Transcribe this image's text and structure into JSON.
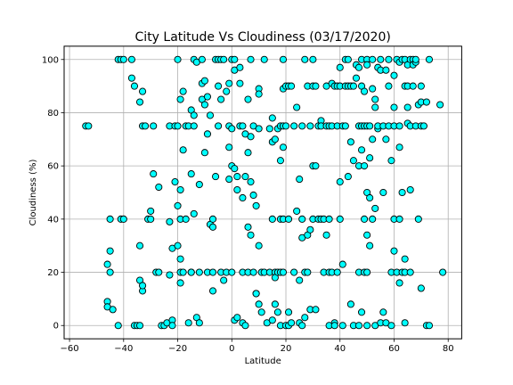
{
  "chart_data": {
    "type": "scatter",
    "title": "City Latitude Vs Cloudiness  (03/17/2020)",
    "xlabel": "Latitude",
    "ylabel": "Cloudiness (%)",
    "xlim": [
      -62,
      85
    ],
    "ylim": [
      -5,
      105
    ],
    "xticks": [
      -60,
      -40,
      -20,
      0,
      20,
      40,
      60,
      80
    ],
    "yticks": [
      0,
      20,
      40,
      60,
      80,
      100
    ],
    "grid": true,
    "marker_fill": "#00ffff",
    "marker_edge": "#000000",
    "points": [
      [
        -54,
        75
      ],
      [
        -53,
        75
      ],
      [
        -46,
        9
      ],
      [
        -46,
        7
      ],
      [
        -46,
        23
      ],
      [
        -45,
        20
      ],
      [
        -45,
        28
      ],
      [
        -45,
        40
      ],
      [
        -44,
        6
      ],
      [
        -42,
        0
      ],
      [
        -42,
        100
      ],
      [
        -41,
        100
      ],
      [
        -41,
        40
      ],
      [
        -40,
        40
      ],
      [
        -40,
        100
      ],
      [
        -37,
        93
      ],
      [
        -37,
        100
      ],
      [
        -36,
        90
      ],
      [
        -36,
        0
      ],
      [
        -35,
        0
      ],
      [
        -34,
        0
      ],
      [
        -34,
        17
      ],
      [
        -34,
        30
      ],
      [
        -34,
        84
      ],
      [
        -33,
        13
      ],
      [
        -33,
        88
      ],
      [
        -33,
        15
      ],
      [
        -33,
        75
      ],
      [
        -32,
        75
      ],
      [
        -31,
        40
      ],
      [
        -30,
        40
      ],
      [
        -30,
        43
      ],
      [
        -29,
        75
      ],
      [
        -29,
        57
      ],
      [
        -28,
        20
      ],
      [
        -27,
        52
      ],
      [
        -27,
        20
      ],
      [
        -26,
        0
      ],
      [
        -25,
        0
      ],
      [
        -24,
        1
      ],
      [
        -23,
        75
      ],
      [
        -23,
        39
      ],
      [
        -23,
        19
      ],
      [
        -22,
        29
      ],
      [
        -22,
        2
      ],
      [
        -22,
        0
      ],
      [
        -21,
        54
      ],
      [
        -21,
        75
      ],
      [
        -20,
        75
      ],
      [
        -20,
        100
      ],
      [
        -20,
        45
      ],
      [
        -20,
        30
      ],
      [
        -19,
        85
      ],
      [
        -19,
        25
      ],
      [
        -19,
        16
      ],
      [
        -19,
        20
      ],
      [
        -19,
        51
      ],
      [
        -19,
        40
      ],
      [
        -18,
        88
      ],
      [
        -18,
        20
      ],
      [
        -18,
        66
      ],
      [
        -17,
        40
      ],
      [
        -17,
        75
      ],
      [
        -16,
        75
      ],
      [
        -16,
        1
      ],
      [
        -15,
        20
      ],
      [
        -15,
        57
      ],
      [
        -15,
        20
      ],
      [
        -15,
        81
      ],
      [
        -14,
        100
      ],
      [
        -14,
        79
      ],
      [
        -14,
        42
      ],
      [
        -14,
        75
      ],
      [
        -13,
        3
      ],
      [
        -13,
        99
      ],
      [
        -12,
        1
      ],
      [
        -12,
        20
      ],
      [
        -12,
        53
      ],
      [
        -11,
        85
      ],
      [
        -11,
        100
      ],
      [
        -11,
        91
      ],
      [
        -10,
        92
      ],
      [
        -10,
        83
      ],
      [
        -10,
        65
      ],
      [
        -9,
        72
      ],
      [
        -9,
        20
      ],
      [
        -9,
        86
      ],
      [
        -8,
        38
      ],
      [
        -8,
        79
      ],
      [
        -7,
        40
      ],
      [
        -7,
        37
      ],
      [
        -7,
        13
      ],
      [
        -7,
        20
      ],
      [
        -6,
        100
      ],
      [
        -6,
        56
      ],
      [
        -5,
        90
      ],
      [
        -5,
        100
      ],
      [
        -5,
        75
      ],
      [
        -4,
        20
      ],
      [
        -4,
        85
      ],
      [
        -4,
        100
      ],
      [
        -3,
        17
      ],
      [
        -3,
        100
      ],
      [
        -2,
        88
      ],
      [
        -2,
        20
      ],
      [
        -1,
        75
      ],
      [
        -1,
        67
      ],
      [
        -1,
        55
      ],
      [
        -1,
        91
      ],
      [
        0,
        20
      ],
      [
        0,
        100
      ],
      [
        0,
        74
      ],
      [
        0,
        60
      ],
      [
        1,
        100
      ],
      [
        1,
        96
      ],
      [
        1,
        59
      ],
      [
        1,
        2
      ],
      [
        2,
        3
      ],
      [
        2,
        51
      ],
      [
        2,
        56
      ],
      [
        3,
        97
      ],
      [
        3,
        75
      ],
      [
        3,
        91
      ],
      [
        4,
        20
      ],
      [
        4,
        1
      ],
      [
        4,
        48
      ],
      [
        4,
        75
      ],
      [
        5,
        56
      ],
      [
        5,
        0
      ],
      [
        5,
        72
      ],
      [
        6,
        65
      ],
      [
        6,
        37
      ],
      [
        6,
        85
      ],
      [
        6,
        20
      ],
      [
        7,
        100
      ],
      [
        7,
        34
      ],
      [
        7,
        71
      ],
      [
        7,
        54
      ],
      [
        8,
        49
      ],
      [
        8,
        20
      ],
      [
        8,
        75
      ],
      [
        9,
        12
      ],
      [
        9,
        45
      ],
      [
        9,
        12
      ],
      [
        10,
        89
      ],
      [
        10,
        87
      ],
      [
        10,
        30
      ],
      [
        10,
        74
      ],
      [
        10,
        8
      ],
      [
        11,
        5
      ],
      [
        11,
        20
      ],
      [
        12,
        100
      ],
      [
        12,
        20
      ],
      [
        13,
        1
      ],
      [
        14,
        20
      ],
      [
        14,
        74
      ],
      [
        15,
        40
      ],
      [
        15,
        78
      ],
      [
        15,
        69
      ],
      [
        15,
        2
      ],
      [
        16,
        70
      ],
      [
        16,
        20
      ],
      [
        16,
        18
      ],
      [
        16,
        8
      ],
      [
        17,
        74
      ],
      [
        17,
        5
      ],
      [
        17,
        20
      ],
      [
        18,
        62
      ],
      [
        18,
        75
      ],
      [
        18,
        0
      ],
      [
        18,
        40
      ],
      [
        18,
        20
      ],
      [
        19,
        100
      ],
      [
        19,
        75
      ],
      [
        19,
        89
      ],
      [
        19,
        67
      ],
      [
        19,
        40
      ],
      [
        19,
        20
      ],
      [
        20,
        90
      ],
      [
        20,
        0
      ],
      [
        20,
        75
      ],
      [
        21,
        90
      ],
      [
        21,
        40
      ],
      [
        21,
        5
      ],
      [
        21,
        0
      ],
      [
        22,
        90
      ],
      [
        22,
        1
      ],
      [
        23,
        75
      ],
      [
        23,
        20
      ],
      [
        24,
        82
      ],
      [
        24,
        43
      ],
      [
        25,
        55
      ],
      [
        25,
        17
      ],
      [
        25,
        1
      ],
      [
        26,
        33
      ],
      [
        26,
        75
      ],
      [
        26,
        40
      ],
      [
        26,
        0
      ],
      [
        27,
        100
      ],
      [
        27,
        20
      ],
      [
        27,
        3
      ],
      [
        28,
        34
      ],
      [
        28,
        20
      ],
      [
        28,
        90
      ],
      [
        29,
        75
      ],
      [
        29,
        6
      ],
      [
        29,
        36
      ],
      [
        30,
        100
      ],
      [
        30,
        60
      ],
      [
        30,
        40
      ],
      [
        30,
        90
      ],
      [
        31,
        90
      ],
      [
        31,
        60
      ],
      [
        31,
        6
      ],
      [
        32,
        75
      ],
      [
        32,
        40
      ],
      [
        33,
        40
      ],
      [
        33,
        77
      ],
      [
        33,
        75
      ],
      [
        34,
        20
      ],
      [
        34,
        40
      ],
      [
        35,
        90
      ],
      [
        35,
        75
      ],
      [
        35,
        34
      ],
      [
        36,
        75
      ],
      [
        36,
        20
      ],
      [
        36,
        0
      ],
      [
        36,
        40
      ],
      [
        37,
        91
      ],
      [
        37,
        75
      ],
      [
        37,
        20
      ],
      [
        38,
        90
      ],
      [
        38,
        1
      ],
      [
        38,
        0
      ],
      [
        39,
        75
      ],
      [
        39,
        20
      ],
      [
        39,
        90
      ],
      [
        40,
        54
      ],
      [
        40,
        40
      ],
      [
        40,
        97
      ],
      [
        40,
        90
      ],
      [
        41,
        75
      ],
      [
        41,
        23
      ],
      [
        41,
        0
      ],
      [
        42,
        90
      ],
      [
        42,
        75
      ],
      [
        42,
        100
      ],
      [
        43,
        56
      ],
      [
        43,
        100
      ],
      [
        43,
        90
      ],
      [
        44,
        69
      ],
      [
        44,
        8
      ],
      [
        44,
        90
      ],
      [
        45,
        90
      ],
      [
        45,
        62
      ],
      [
        45,
        0
      ],
      [
        46,
        98
      ],
      [
        46,
        93
      ],
      [
        47,
        75
      ],
      [
        47,
        60
      ],
      [
        47,
        20
      ],
      [
        47,
        97
      ],
      [
        47,
        0
      ],
      [
        48,
        66
      ],
      [
        48,
        75
      ],
      [
        48,
        100
      ],
      [
        48,
        90
      ],
      [
        48,
        5
      ],
      [
        49,
        88
      ],
      [
        49,
        60
      ],
      [
        49,
        40
      ],
      [
        49,
        20
      ],
      [
        49,
        75
      ],
      [
        50,
        75
      ],
      [
        50,
        50
      ],
      [
        50,
        34
      ],
      [
        50,
        100
      ],
      [
        50,
        0
      ],
      [
        50,
        98
      ],
      [
        50,
        20
      ],
      [
        51,
        48
      ],
      [
        51,
        30
      ],
      [
        51,
        75
      ],
      [
        51,
        63
      ],
      [
        52,
        100
      ],
      [
        52,
        70
      ],
      [
        52,
        89
      ],
      [
        52,
        40
      ],
      [
        53,
        85
      ],
      [
        53,
        82
      ],
      [
        53,
        44
      ],
      [
        53,
        0
      ],
      [
        54,
        97
      ],
      [
        54,
        74
      ],
      [
        54,
        75
      ],
      [
        55,
        96
      ],
      [
        55,
        1
      ],
      [
        55,
        100
      ],
      [
        56,
        50
      ],
      [
        56,
        75
      ],
      [
        56,
        5
      ],
      [
        57,
        96
      ],
      [
        57,
        1
      ],
      [
        57,
        70
      ],
      [
        58,
        90
      ],
      [
        58,
        100
      ],
      [
        58,
        75
      ],
      [
        59,
        62
      ],
      [
        59,
        20
      ],
      [
        59,
        0
      ],
      [
        60,
        82
      ],
      [
        60,
        75
      ],
      [
        60,
        28
      ],
      [
        60,
        40
      ],
      [
        60,
        94
      ],
      [
        61,
        20
      ],
      [
        61,
        100
      ],
      [
        62,
        40
      ],
      [
        62,
        16
      ],
      [
        62,
        67
      ],
      [
        62,
        99
      ],
      [
        62,
        75
      ],
      [
        63,
        20
      ],
      [
        63,
        50
      ],
      [
        63,
        100
      ],
      [
        64,
        90
      ],
      [
        64,
        100
      ],
      [
        64,
        25
      ],
      [
        64,
        20
      ],
      [
        64,
        1
      ],
      [
        65,
        90
      ],
      [
        65,
        82
      ],
      [
        65,
        76
      ],
      [
        65,
        98
      ],
      [
        66,
        75
      ],
      [
        66,
        51
      ],
      [
        66,
        20
      ],
      [
        66,
        100
      ],
      [
        67,
        100
      ],
      [
        67,
        90
      ],
      [
        67,
        98
      ],
      [
        68,
        75
      ],
      [
        68,
        99
      ],
      [
        68,
        100
      ],
      [
        69,
        83
      ],
      [
        69,
        40
      ],
      [
        70,
        75
      ],
      [
        70,
        84
      ],
      [
        70,
        14
      ],
      [
        70,
        90
      ],
      [
        71,
        75
      ],
      [
        72,
        0
      ],
      [
        72,
        84
      ],
      [
        73,
        0
      ],
      [
        73,
        100
      ],
      [
        77,
        83
      ],
      [
        78,
        20
      ]
    ]
  }
}
